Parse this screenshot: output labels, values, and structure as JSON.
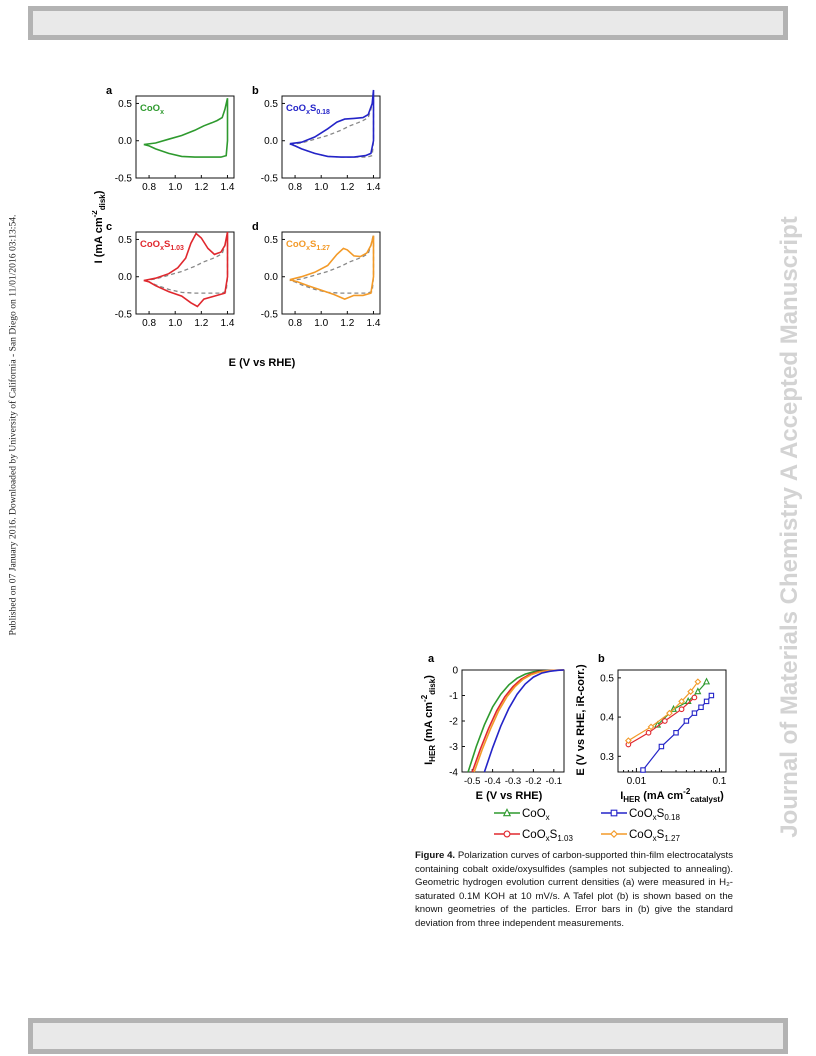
{
  "sidebar_note": "Published on 07 January 2016. Downloaded by University of California - San Diego on 11/01/2016 03:13:54.",
  "watermark": "Journal of Materials Chemistry A Accepted Manuscript",
  "figure3": {
    "panel_letters": [
      "a",
      "b",
      "c",
      "d"
    ],
    "ylabel": "I (mA cm",
    "ylabel_sup": "-2",
    "ylabel_sub": "disk",
    "ylabel_end": ")",
    "xlabel": "E (V vs RHE)",
    "panels": [
      {
        "letter": "a",
        "label_base": "CoO",
        "label_sub1": "x",
        "label_mid": "",
        "label_sub2": "",
        "color": "#2e9a2e"
      },
      {
        "letter": "b",
        "label_base": "CoO",
        "label_sub1": "x",
        "label_mid": "S",
        "label_sub2": "0.18",
        "color": "#2424c8"
      },
      {
        "letter": "c",
        "label_base": "CoO",
        "label_sub1": "x",
        "label_mid": "S",
        "label_sub2": "1.03",
        "color": "#e0282e"
      },
      {
        "letter": "d",
        "label_base": "CoO",
        "label_sub1": "x",
        "label_mid": "S",
        "label_sub2": "1.27",
        "color": "#f39a28"
      }
    ]
  },
  "figure4": {
    "a": {
      "letter": "a",
      "ylabel": "I",
      "ylabel_sub": "HER",
      "ylabel_rest": " (mA cm",
      "ylabel_sup": "-2",
      "ylabel_sub2": "disk",
      "ylabel_end": ")",
      "xlabel": "E (V vs RHE)"
    },
    "b": {
      "letter": "b",
      "ylabel": "E (V vs RHE, iR-corr.)",
      "xlabel": "I",
      "xlabel_sub": "HER",
      "xlabel_rest": " (mA cm",
      "xlabel_sup": "-2",
      "xlabel_sub2": "catalyst",
      "xlabel_end": ")"
    },
    "legend": [
      {
        "base": "CoO",
        "sub1": "x",
        "mid": "",
        "sub2": "",
        "marker": "triangle",
        "color": "#2e9a2e"
      },
      {
        "base": "CoO",
        "sub1": "x",
        "mid": "S",
        "sub2": "0.18",
        "marker": "square",
        "color": "#2424c8"
      },
      {
        "base": "CoO",
        "sub1": "x",
        "mid": "S",
        "sub2": "1.03",
        "marker": "circle",
        "color": "#e0282e"
      },
      {
        "base": "CoO",
        "sub1": "x",
        "mid": "S",
        "sub2": "1.27",
        "marker": "diamond",
        "color": "#f39a28"
      }
    ],
    "caption": {
      "label": "Figure 4.",
      "text": " Polarization curves of carbon-supported thin-film electrocatalysts containing cobalt oxide/oxysulfides (samples not subjected to annealing). Geometric hydrogen evolution current densities (a) were measured in H₂-saturated 0.1M KOH at 10 mV/s. A Tafel plot (b) is shown based on the known geometries of the particles.  Error bars in (b) give the standard deviation from three independent measurements."
    }
  },
  "chart_data": [
    {
      "type": "line",
      "panel": "a",
      "xlabel": "E (V vs RHE)",
      "ylabel": "I (mA cm-2 disk)",
      "xlim": [
        0.7,
        1.45
      ],
      "ylim": [
        -0.5,
        0.6
      ],
      "xticks": [
        0.8,
        1.0,
        1.2,
        1.4
      ],
      "yticks": [
        -0.5,
        0.0,
        0.5
      ],
      "series": [
        {
          "name": "CoOx",
          "color": "#2e9a2e",
          "x": [
            0.76,
            0.85,
            0.95,
            1.05,
            1.15,
            1.22,
            1.28,
            1.32,
            1.36,
            1.38,
            1.4,
            1.4,
            1.39,
            1.35,
            1.25,
            1.15,
            1.05,
            0.95,
            0.85,
            0.8,
            0.76
          ],
          "y": [
            -0.05,
            -0.03,
            0.02,
            0.07,
            0.14,
            0.2,
            0.24,
            0.27,
            0.31,
            0.42,
            0.57,
            0.0,
            -0.2,
            -0.22,
            -0.22,
            -0.22,
            -0.21,
            -0.17,
            -0.11,
            -0.07,
            -0.05
          ]
        }
      ]
    },
    {
      "type": "line",
      "panel": "b",
      "xlim": [
        0.7,
        1.45
      ],
      "ylim": [
        -0.5,
        0.6
      ],
      "xticks": [
        0.8,
        1.0,
        1.2,
        1.4
      ],
      "yticks": [
        -0.5,
        0.0,
        0.5
      ],
      "series": [
        {
          "name": "CoOxS0.18",
          "color": "#2424c8",
          "x": [
            0.76,
            0.85,
            0.95,
            1.05,
            1.12,
            1.18,
            1.25,
            1.32,
            1.36,
            1.39,
            1.4,
            1.4,
            1.38,
            1.34,
            1.25,
            1.15,
            1.05,
            0.95,
            0.85,
            0.8,
            0.76
          ],
          "y": [
            -0.04,
            -0.02,
            0.05,
            0.16,
            0.25,
            0.29,
            0.3,
            0.31,
            0.35,
            0.5,
            0.68,
            0.0,
            -0.17,
            -0.2,
            -0.22,
            -0.22,
            -0.21,
            -0.17,
            -0.11,
            -0.07,
            -0.04
          ]
        },
        {
          "name": "CoOx reference",
          "color": "#888888",
          "dashed": true,
          "x": [
            0.76,
            0.85,
            0.95,
            1.05,
            1.15,
            1.22,
            1.28,
            1.32,
            1.36,
            1.38,
            1.4,
            1.4,
            1.39,
            1.35,
            1.25,
            1.15,
            1.05,
            0.95,
            0.85,
            0.8,
            0.76
          ],
          "y": [
            -0.05,
            -0.03,
            0.02,
            0.07,
            0.14,
            0.2,
            0.24,
            0.27,
            0.31,
            0.42,
            0.57,
            0.0,
            -0.2,
            -0.22,
            -0.22,
            -0.22,
            -0.21,
            -0.17,
            -0.11,
            -0.07,
            -0.05
          ]
        }
      ]
    },
    {
      "type": "line",
      "panel": "c",
      "xlim": [
        0.7,
        1.45
      ],
      "ylim": [
        -0.5,
        0.6
      ],
      "xticks": [
        0.8,
        1.0,
        1.2,
        1.4
      ],
      "yticks": [
        -0.5,
        0.0,
        0.5
      ],
      "series": [
        {
          "name": "CoOxS1.03",
          "color": "#e0282e",
          "x": [
            0.76,
            0.85,
            0.95,
            1.02,
            1.08,
            1.12,
            1.16,
            1.2,
            1.25,
            1.3,
            1.35,
            1.38,
            1.4,
            1.4,
            1.38,
            1.3,
            1.22,
            1.17,
            1.12,
            1.05,
            0.95,
            0.85,
            0.8,
            0.76
          ],
          "y": [
            -0.05,
            -0.02,
            0.04,
            0.12,
            0.25,
            0.45,
            0.58,
            0.52,
            0.38,
            0.3,
            0.33,
            0.42,
            0.6,
            0.0,
            -0.22,
            -0.26,
            -0.3,
            -0.4,
            -0.35,
            -0.26,
            -0.2,
            -0.12,
            -0.07,
            -0.05
          ]
        },
        {
          "name": "CoOx reference",
          "color": "#888888",
          "dashed": true,
          "x": [
            0.76,
            0.85,
            0.95,
            1.05,
            1.15,
            1.22,
            1.28,
            1.32,
            1.36,
            1.38,
            1.4,
            1.4,
            1.39,
            1.35,
            1.25,
            1.15,
            1.05,
            0.95,
            0.85,
            0.8,
            0.76
          ],
          "y": [
            -0.05,
            -0.03,
            0.02,
            0.07,
            0.14,
            0.2,
            0.24,
            0.27,
            0.31,
            0.42,
            0.57,
            0.0,
            -0.2,
            -0.22,
            -0.22,
            -0.22,
            -0.21,
            -0.17,
            -0.11,
            -0.07,
            -0.05
          ]
        }
      ]
    },
    {
      "type": "line",
      "panel": "d",
      "xlim": [
        0.7,
        1.45
      ],
      "ylim": [
        -0.5,
        0.6
      ],
      "xticks": [
        0.8,
        1.0,
        1.2,
        1.4
      ],
      "yticks": [
        -0.5,
        0.0,
        0.5
      ],
      "series": [
        {
          "name": "CoOxS1.27",
          "color": "#f39a28",
          "x": [
            0.76,
            0.85,
            0.95,
            1.05,
            1.12,
            1.17,
            1.2,
            1.25,
            1.3,
            1.35,
            1.38,
            1.4,
            1.4,
            1.38,
            1.32,
            1.25,
            1.18,
            1.1,
            1.0,
            0.9,
            0.82,
            0.76
          ],
          "y": [
            -0.04,
            0.0,
            0.06,
            0.15,
            0.3,
            0.38,
            0.36,
            0.28,
            0.27,
            0.32,
            0.42,
            0.55,
            0.0,
            -0.22,
            -0.25,
            -0.25,
            -0.3,
            -0.24,
            -0.18,
            -0.12,
            -0.07,
            -0.04
          ]
        },
        {
          "name": "CoOx reference",
          "color": "#888888",
          "dashed": true,
          "x": [
            0.76,
            0.85,
            0.95,
            1.05,
            1.15,
            1.22,
            1.28,
            1.32,
            1.36,
            1.38,
            1.4,
            1.4,
            1.39,
            1.35,
            1.25,
            1.15,
            1.05,
            0.95,
            0.85,
            0.8,
            0.76
          ],
          "y": [
            -0.05,
            -0.03,
            0.02,
            0.07,
            0.14,
            0.2,
            0.24,
            0.27,
            0.31,
            0.42,
            0.57,
            0.0,
            -0.2,
            -0.22,
            -0.22,
            -0.22,
            -0.21,
            -0.17,
            -0.11,
            -0.07,
            -0.05
          ]
        }
      ]
    },
    {
      "type": "line",
      "panel": "4a",
      "xlabel": "E (V vs RHE)",
      "ylabel": "IHER (mA cm-2 disk)",
      "xlim": [
        -0.55,
        -0.05
      ],
      "ylim": [
        -4,
        0
      ],
      "xticks": [
        -0.5,
        -0.4,
        -0.3,
        -0.2,
        -0.1
      ],
      "yticks": [
        0,
        -1,
        -2,
        -3,
        -4
      ],
      "series": [
        {
          "name": "CoOx",
          "color": "#2e9a2e",
          "x": [
            -0.52,
            -0.48,
            -0.44,
            -0.4,
            -0.36,
            -0.32,
            -0.28,
            -0.24,
            -0.2,
            -0.15,
            -0.1,
            -0.05
          ],
          "y": [
            -4.0,
            -3.0,
            -2.15,
            -1.45,
            -0.95,
            -0.58,
            -0.32,
            -0.16,
            -0.07,
            -0.03,
            -0.01,
            0.0
          ]
        },
        {
          "name": "CoOxS1.03",
          "color": "#e0282e",
          "x": [
            -0.5,
            -0.46,
            -0.42,
            -0.38,
            -0.34,
            -0.3,
            -0.26,
            -0.22,
            -0.18,
            -0.14,
            -0.1,
            -0.05
          ],
          "y": [
            -4.0,
            -3.1,
            -2.3,
            -1.6,
            -1.05,
            -0.65,
            -0.36,
            -0.18,
            -0.08,
            -0.03,
            -0.01,
            0.0
          ]
        },
        {
          "name": "CoOxS1.27",
          "color": "#f39a28",
          "x": [
            -0.49,
            -0.45,
            -0.41,
            -0.37,
            -0.33,
            -0.29,
            -0.25,
            -0.21,
            -0.17,
            -0.13,
            -0.09,
            -0.05
          ],
          "y": [
            -4.0,
            -3.1,
            -2.3,
            -1.6,
            -1.05,
            -0.65,
            -0.36,
            -0.18,
            -0.08,
            -0.03,
            -0.01,
            0.0
          ]
        },
        {
          "name": "CoOxS0.18",
          "color": "#2424c8",
          "x": [
            -0.44,
            -0.4,
            -0.36,
            -0.32,
            -0.28,
            -0.24,
            -0.2,
            -0.16,
            -0.12,
            -0.08,
            -0.05
          ],
          "y": [
            -4.0,
            -3.05,
            -2.2,
            -1.5,
            -0.95,
            -0.55,
            -0.28,
            -0.12,
            -0.05,
            -0.01,
            0.0
          ]
        }
      ]
    },
    {
      "type": "scatter",
      "panel": "4b",
      "xlabel": "IHER (mA cm-2 catalyst)",
      "ylabel": "E (V vs RHE, iR-corr.)",
      "xscale": "log",
      "xlim": [
        0.006,
        0.12
      ],
      "ylim": [
        0.26,
        0.52
      ],
      "xticks": [
        0.01,
        0.1
      ],
      "yticks": [
        0.3,
        0.4,
        0.5
      ],
      "series": [
        {
          "name": "CoOx",
          "color": "#2e9a2e",
          "marker": "triangle",
          "x": [
            0.018,
            0.028,
            0.042,
            0.055,
            0.07
          ],
          "y": [
            0.38,
            0.42,
            0.44,
            0.465,
            0.49
          ]
        },
        {
          "name": "CoOxS0.18",
          "color": "#2424c8",
          "marker": "square",
          "x": [
            0.012,
            0.02,
            0.03,
            0.04,
            0.05,
            0.06,
            0.07,
            0.08
          ],
          "y": [
            0.265,
            0.325,
            0.36,
            0.39,
            0.41,
            0.425,
            0.44,
            0.455
          ]
        },
        {
          "name": "CoOxS1.03",
          "color": "#e0282e",
          "marker": "circle",
          "x": [
            0.008,
            0.014,
            0.022,
            0.035,
            0.05
          ],
          "y": [
            0.33,
            0.36,
            0.39,
            0.42,
            0.45
          ]
        },
        {
          "name": "CoOxS1.27",
          "color": "#f39a28",
          "marker": "diamond",
          "x": [
            0.008,
            0.015,
            0.025,
            0.035,
            0.045,
            0.055
          ],
          "y": [
            0.34,
            0.375,
            0.41,
            0.44,
            0.465,
            0.49
          ]
        }
      ]
    }
  ]
}
